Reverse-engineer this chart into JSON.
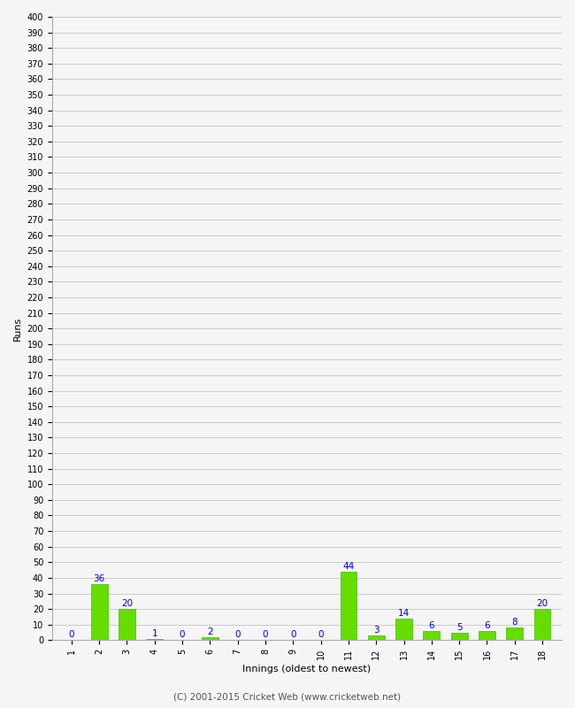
{
  "innings": [
    1,
    2,
    3,
    4,
    5,
    6,
    7,
    8,
    9,
    10,
    11,
    12,
    13,
    14,
    15,
    16,
    17,
    18
  ],
  "runs": [
    0,
    36,
    20,
    1,
    0,
    2,
    0,
    0,
    0,
    0,
    44,
    3,
    14,
    6,
    5,
    6,
    8,
    20
  ],
  "bar_color": "#66dd00",
  "bar_edge_color": "#44bb00",
  "label_color": "#0000cc",
  "background_color": "#f5f5f5",
  "grid_color": "#cccccc",
  "xlabel": "Innings (oldest to newest)",
  "ylabel": "Runs",
  "footer": "(C) 2001-2015 Cricket Web (www.cricketweb.net)",
  "ylim_max": 400,
  "ytick_step": 10,
  "label_fontsize": 7.5,
  "axis_label_fontsize": 8,
  "tick_fontsize": 7,
  "footer_fontsize": 7.5,
  "xtick_rotation": 90
}
